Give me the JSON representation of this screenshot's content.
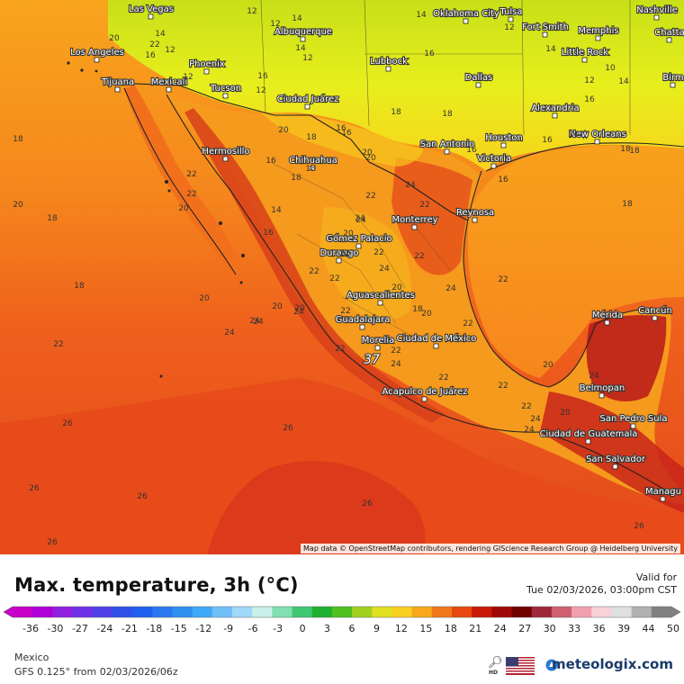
{
  "map": {
    "attribution": "Map data © OpenStreetMap contributors, rendering GIScience Research Group @ Heidelberg University",
    "cities": [
      {
        "name": "Las Vegas"
      },
      {
        "name": "Albuquerque"
      },
      {
        "name": "Oklahoma City"
      },
      {
        "name": "Tulsa"
      },
      {
        "name": "Nashville"
      },
      {
        "name": "Chatta"
      },
      {
        "name": "Fort Smith"
      },
      {
        "name": "Memphis"
      },
      {
        "name": "Los Angeles"
      },
      {
        "name": "Tijuana"
      },
      {
        "name": "Mexicali"
      },
      {
        "name": "Phoenix"
      },
      {
        "name": "Tucson"
      },
      {
        "name": "Lubbock"
      },
      {
        "name": "Little Rock"
      },
      {
        "name": "Dallas"
      },
      {
        "name": "Birm"
      },
      {
        "name": "Ciudad Juárez"
      },
      {
        "name": "Alexandria"
      },
      {
        "name": "Hermosillo"
      },
      {
        "name": "Chihuahua"
      },
      {
        "name": "San Antonio"
      },
      {
        "name": "Houston"
      },
      {
        "name": "Victoria"
      },
      {
        "name": "New Orleans"
      },
      {
        "name": "Monterrey"
      },
      {
        "name": "Reynosa"
      },
      {
        "name": "Gómez Palacio"
      },
      {
        "name": "Durango"
      },
      {
        "name": "Aguascalientes"
      },
      {
        "name": "Guadalajara"
      },
      {
        "name": "Mérida"
      },
      {
        "name": "Cancún"
      },
      {
        "name": "Morelia"
      },
      {
        "name": "Ciudad de México"
      },
      {
        "name": "Acapulco de Juárez"
      },
      {
        "name": "Belmopan"
      },
      {
        "name": "San Pedro Sula"
      },
      {
        "name": "Ciudad de Guatemala"
      },
      {
        "name": "San Salvador"
      },
      {
        "name": "Managu"
      }
    ],
    "values": [
      {
        "v": "12"
      },
      {
        "v": "14"
      },
      {
        "v": "12"
      },
      {
        "v": "14"
      },
      {
        "v": "12"
      },
      {
        "v": "14"
      },
      {
        "v": "10"
      },
      {
        "v": "14"
      },
      {
        "v": "20"
      },
      {
        "v": "22"
      },
      {
        "v": "14"
      },
      {
        "v": "12"
      },
      {
        "v": "16"
      },
      {
        "v": "12"
      },
      {
        "v": "14"
      },
      {
        "v": "12"
      },
      {
        "v": "16"
      },
      {
        "v": "12"
      },
      {
        "v": "14"
      },
      {
        "v": "12"
      },
      {
        "v": "16"
      },
      {
        "v": "18"
      },
      {
        "v": "16"
      },
      {
        "v": "24"
      },
      {
        "v": "20"
      },
      {
        "v": "16"
      },
      {
        "v": "22"
      },
      {
        "v": "24"
      },
      {
        "v": "20"
      },
      {
        "v": "16"
      },
      {
        "v": "14"
      },
      {
        "v": "16"
      },
      {
        "v": "18"
      },
      {
        "v": "18"
      },
      {
        "v": "18"
      },
      {
        "v": "18"
      },
      {
        "v": "16"
      },
      {
        "v": "18"
      },
      {
        "v": "16"
      },
      {
        "v": "16"
      },
      {
        "v": "18"
      },
      {
        "v": "20"
      },
      {
        "v": "16"
      },
      {
        "v": "18"
      },
      {
        "v": "18"
      },
      {
        "v": "18"
      },
      {
        "v": "18"
      },
      {
        "v": "22"
      },
      {
        "v": "20"
      },
      {
        "v": "24"
      },
      {
        "v": "22"
      },
      {
        "v": "20"
      },
      {
        "v": "20"
      },
      {
        "v": "20"
      },
      {
        "v": "24"
      },
      {
        "v": "22"
      },
      {
        "v": "22"
      },
      {
        "v": "22"
      },
      {
        "v": "22"
      },
      {
        "v": "24"
      },
      {
        "v": "20"
      },
      {
        "v": "22"
      },
      {
        "v": "18"
      },
      {
        "v": "22"
      },
      {
        "v": "20"
      },
      {
        "v": "20"
      },
      {
        "v": "22"
      },
      {
        "v": "24"
      },
      {
        "v": "22"
      },
      {
        "v": "22"
      },
      {
        "v": "20"
      },
      {
        "v": "24"
      },
      {
        "v": "24"
      },
      {
        "v": "22"
      },
      {
        "v": "22"
      },
      {
        "v": "22"
      },
      {
        "v": "22"
      },
      {
        "v": "24"
      },
      {
        "v": "24"
      },
      {
        "v": "20"
      },
      {
        "v": "22"
      },
      {
        "v": "24"
      },
      {
        "v": "26"
      },
      {
        "v": "26"
      },
      {
        "v": "26"
      },
      {
        "v": "26"
      },
      {
        "v": "26"
      },
      {
        "v": "26"
      },
      {
        "v": "26"
      },
      {
        "v": "24"
      },
      {
        "v": "37"
      },
      {
        "v": "24"
      },
      {
        "v": "20"
      },
      {
        "v": "22"
      }
    ]
  },
  "footer": {
    "title": "Max. temperature, 3h (°C)",
    "valid_label": "Valid for",
    "valid_time": "Tue 02/03/2026, 03:00pm CST",
    "region": "Mexico",
    "model_line": "GFS 0.125° from  02/03/2026/06z",
    "brand": "meteologix.com",
    "hd_label": "HD"
  },
  "scale": {
    "ticks": [
      "-36",
      "-30",
      "-27",
      "-24",
      "-21",
      "-18",
      "-15",
      "-12",
      "-9",
      "-6",
      "-3",
      "0",
      "3",
      "6",
      "9",
      "12",
      "15",
      "18",
      "21",
      "24",
      "27",
      "30",
      "33",
      "36",
      "39",
      "44",
      "50"
    ],
    "colors": [
      "#c800c8",
      "#b000d8",
      "#9020e0",
      "#7030e8",
      "#5040e8",
      "#3050e8",
      "#2060f0",
      "#2878f0",
      "#3090f0",
      "#40a8f8",
      "#70c0f8",
      "#a0d8f8",
      "#c8f0e8",
      "#80e0b0",
      "#40c870",
      "#20b030",
      "#50c020",
      "#a0d020",
      "#e0e020",
      "#f8d020",
      "#f8a818",
      "#f07818",
      "#e84810",
      "#c81808",
      "#a00808",
      "#700000",
      "#a02838",
      "#d06070",
      "#f0a0b0",
      "#f8d0d8",
      "#e0e0e0",
      "#b0b0b0",
      "#808080"
    ]
  },
  "style": {
    "sea_warm": "#f5781e",
    "sea_hot": "#e3431b",
    "land_cool": "#e6ef1c",
    "land_warm": "#f6a21d",
    "brand_color": "#1a3a6a"
  }
}
